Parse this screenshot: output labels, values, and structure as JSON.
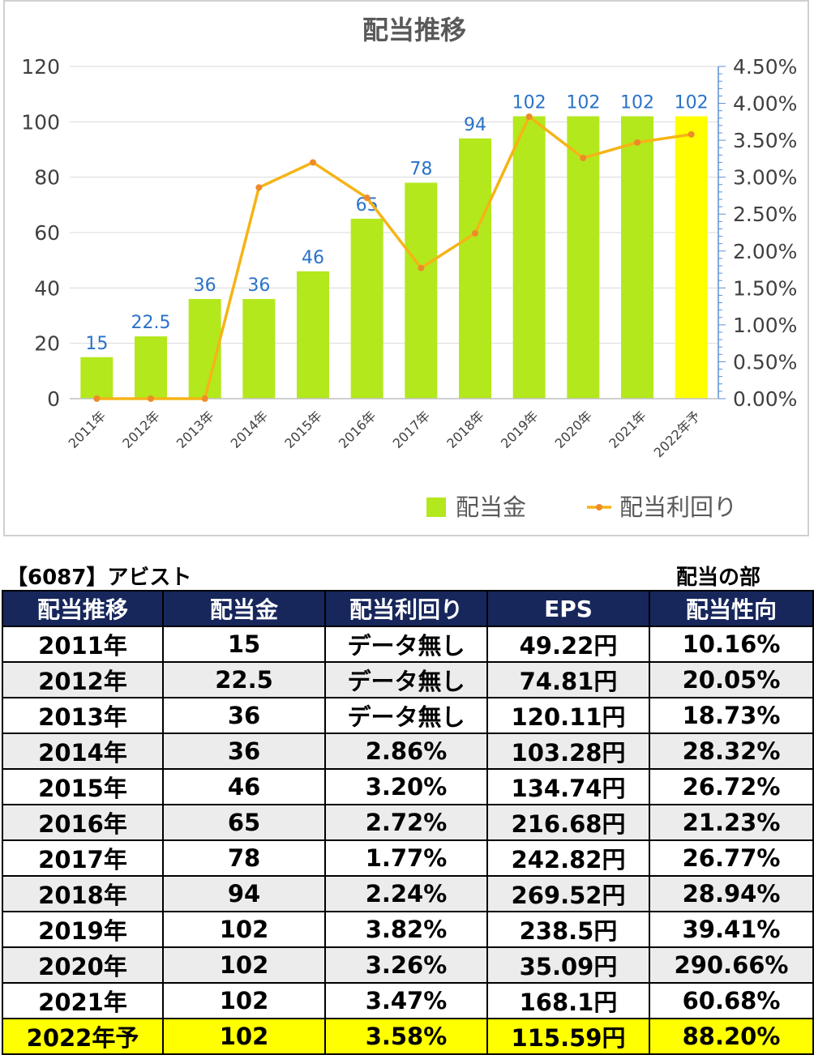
{
  "chart_data": {
    "type": "bar+line",
    "title": "配当推移",
    "categories": [
      "2011年",
      "2012年",
      "2013年",
      "2014年",
      "2015年",
      "2016年",
      "2017年",
      "2018年",
      "2019年",
      "2020年",
      "2021年",
      "2022年予"
    ],
    "series": [
      {
        "name": "配当金",
        "type": "bar",
        "axis": "left",
        "values": [
          15,
          22.5,
          36,
          36,
          46,
          65,
          78,
          94,
          102,
          102,
          102,
          102
        ],
        "labels": [
          "15",
          "22.5",
          "36",
          "36",
          "46",
          "65",
          "78",
          "94",
          "102",
          "102",
          "102",
          "102"
        ]
      },
      {
        "name": "配当利回り",
        "type": "line",
        "axis": "right",
        "values": [
          0,
          0,
          0,
          2.86,
          3.2,
          2.72,
          1.77,
          2.24,
          3.82,
          3.26,
          3.47,
          3.58
        ]
      }
    ],
    "y_left": {
      "ticks": [
        "0",
        "20",
        "40",
        "60",
        "80",
        "100",
        "120"
      ],
      "ylim": [
        0,
        120
      ]
    },
    "y_right": {
      "ticks": [
        "0.00%",
        "0.50%",
        "1.00%",
        "1.50%",
        "2.00%",
        "2.50%",
        "3.00%",
        "3.50%",
        "4.00%",
        "4.50%"
      ],
      "ylim": [
        0,
        4.5
      ]
    },
    "colors": {
      "bar": "#b3e81d",
      "bar_forecast": "#ffff00",
      "line": "#f5b416",
      "marker": "#ef8a2a",
      "label": "#2a72c9",
      "axis_right": "#5b8fd1"
    },
    "legend_position": "bottom-right",
    "grid": true
  },
  "table": {
    "title": "【6087】アビスト",
    "subtitle": "配当の部",
    "headers": [
      "配当推移",
      "配当金",
      "配当利回り",
      "EPS",
      "配当性向"
    ],
    "rows": [
      [
        "2011年",
        "15",
        "データ無し",
        "49.22円",
        "10.16%"
      ],
      [
        "2012年",
        "22.5",
        "データ無し",
        "74.81円",
        "20.05%"
      ],
      [
        "2013年",
        "36",
        "データ無し",
        "120.11円",
        "18.73%"
      ],
      [
        "2014年",
        "36",
        "2.86%",
        "103.28円",
        "28.32%"
      ],
      [
        "2015年",
        "46",
        "3.20%",
        "134.74円",
        "26.72%"
      ],
      [
        "2016年",
        "65",
        "2.72%",
        "216.68円",
        "21.23%"
      ],
      [
        "2017年",
        "78",
        "1.77%",
        "242.82円",
        "26.77%"
      ],
      [
        "2018年",
        "94",
        "2.24%",
        "269.52円",
        "28.94%"
      ],
      [
        "2019年",
        "102",
        "3.82%",
        "238.5円",
        "39.41%"
      ],
      [
        "2020年",
        "102",
        "3.26%",
        "35.09円",
        "290.66%"
      ],
      [
        "2021年",
        "102",
        "3.47%",
        "168.1円",
        "60.68%"
      ],
      [
        "2022年予",
        "102",
        "3.58%",
        "115.59円",
        "88.20%"
      ]
    ],
    "highlight_color": "#ffff00",
    "header_color": "#17275c"
  }
}
